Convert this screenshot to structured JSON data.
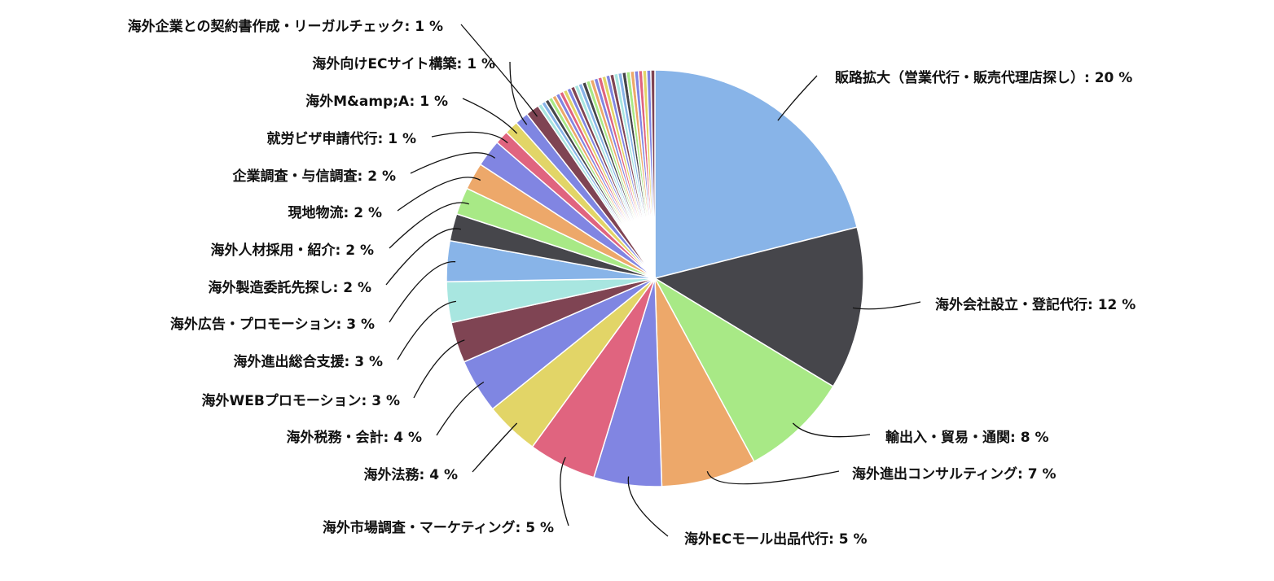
{
  "chart_data": {
    "type": "pie",
    "unit": "%",
    "labeled_slices": [
      {
        "label": "販路拡大（営業代行・販売代理店探し）",
        "value": 20,
        "color": "#88b4e8"
      },
      {
        "label": "海外会社設立・登記代行",
        "value": 12,
        "color": "#46464b"
      },
      {
        "label": "輸出入・貿易・通関",
        "value": 8,
        "color": "#a8e986"
      },
      {
        "label": "海外進出コンサルティング",
        "value": 7,
        "color": "#eda86a"
      },
      {
        "label": "海外ECモール出品代行",
        "value": 5,
        "color": "#8185e2"
      },
      {
        "label": "海外市場調査・マーケティング",
        "value": 5,
        "color": "#e0647f"
      },
      {
        "label": "海外法務",
        "value": 4,
        "color": "#e2d567"
      },
      {
        "label": "海外税務・会計",
        "value": 4,
        "color": "#7f86e2"
      },
      {
        "label": "海外WEBプロモーション",
        "value": 3,
        "color": "#7f4453"
      },
      {
        "label": "海外進出総合支援",
        "value": 3,
        "color": "#a8e6e0"
      },
      {
        "label": "海外広告・プロモーション",
        "value": 3,
        "color": "#88b4e8"
      },
      {
        "label": "海外製造委託先探し",
        "value": 2,
        "color": "#46464b"
      },
      {
        "label": "海外人材採用・紹介",
        "value": 2,
        "color": "#a8e986"
      },
      {
        "label": "現地物流",
        "value": 2,
        "color": "#eda86a"
      },
      {
        "label": "企業調査・与信調査",
        "value": 2,
        "color": "#8185e2"
      },
      {
        "label": "就労ビザ申請代行",
        "value": 1,
        "color": "#e0647f"
      },
      {
        "label": "海外M&amp;A",
        "value": 1,
        "color": "#e2d567"
      },
      {
        "label": "海外向けECサイト構築",
        "value": 1,
        "color": "#7f86e2"
      },
      {
        "label": "海外企業との契約書作成・リーガルチェック",
        "value": 1,
        "color": "#7f4453"
      }
    ],
    "unlabeled_slice_count": 30,
    "unlabeled_slice_palette": [
      "#a8e6e0",
      "#88b4e8",
      "#46464b",
      "#a8e986",
      "#eda86a",
      "#8185e2",
      "#e0647f",
      "#e2d567",
      "#7f86e2",
      "#7f4453"
    ],
    "legend": "none"
  }
}
